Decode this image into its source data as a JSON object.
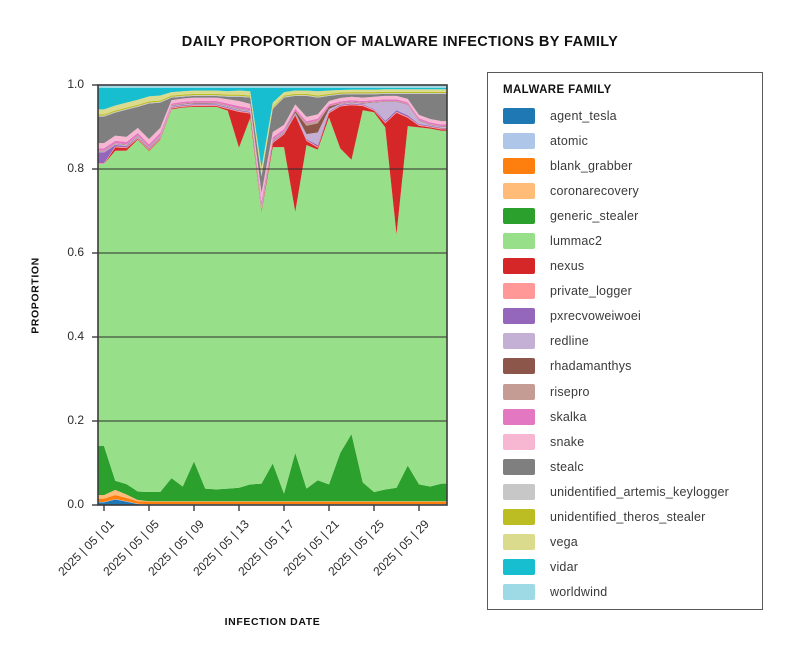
{
  "title": "DAILY PROPORTION OF MALWARE INFECTIONS BY FAMILY",
  "chart_data": {
    "type": "area",
    "stacked": true,
    "normalized": true,
    "title": "DAILY PROPORTION OF MALWARE INFECTIONS BY FAMILY",
    "xlabel": "INFECTION DATE",
    "ylabel": "PROPORTION",
    "ylim": [
      0.0,
      1.0
    ],
    "grid": true,
    "legend_position": "right",
    "legend_title": "MALWARE FAMILY",
    "x_days": [
      1,
      2,
      3,
      4,
      5,
      6,
      7,
      8,
      9,
      10,
      11,
      12,
      13,
      14,
      15,
      16,
      17,
      18,
      19,
      20,
      21,
      22,
      23,
      24,
      25,
      26,
      27,
      28,
      29,
      30,
      31
    ],
    "x_tick_days": [
      1,
      5,
      9,
      13,
      17,
      21,
      25,
      29
    ],
    "x_tick_labels": [
      "2025 | 05 | 01",
      "2025 | 05 | 05",
      "2025 | 05 | 09",
      "2025 | 05 | 13",
      "2025 | 05 | 17",
      "2025 | 05 | 21",
      "2025 | 05 | 25",
      "2025 | 05 | 29"
    ],
    "y_ticks": [
      1.0,
      0.8,
      0.6,
      0.4,
      0.2,
      0.0
    ],
    "y_tick_labels": [
      "1.0",
      "0.8",
      "0.6",
      "0.4",
      "0.2",
      "0.0"
    ],
    "series": [
      {
        "name": "agent_tesla",
        "color": "#1f77b4",
        "values": [
          0.006,
          0.013,
          0.008,
          0.002,
          0.001,
          0.001,
          0.001,
          0.001,
          0.001,
          0.001,
          0.001,
          0.001,
          0.001,
          0.001,
          0.001,
          0.001,
          0.001,
          0.001,
          0.001,
          0.001,
          0.001,
          0.001,
          0.001,
          0.001,
          0.001,
          0.001,
          0.001,
          0.001,
          0.001,
          0.001,
          0.001
        ]
      },
      {
        "name": "atomic",
        "color": "#aec7e8",
        "values": [
          0.001,
          0.001,
          0.001,
          0.001,
          0.001,
          0.001,
          0.001,
          0.001,
          0.001,
          0.001,
          0.001,
          0.001,
          0.001,
          0.001,
          0.001,
          0.001,
          0.001,
          0.001,
          0.001,
          0.001,
          0.001,
          0.001,
          0.001,
          0.001,
          0.001,
          0.001,
          0.001,
          0.001,
          0.001,
          0.001,
          0.001
        ]
      },
      {
        "name": "blank_grabber",
        "color": "#ff7f0e",
        "values": [
          0.008,
          0.01,
          0.008,
          0.006,
          0.006,
          0.006,
          0.006,
          0.006,
          0.006,
          0.006,
          0.006,
          0.006,
          0.006,
          0.006,
          0.006,
          0.006,
          0.006,
          0.006,
          0.006,
          0.006,
          0.006,
          0.006,
          0.006,
          0.006,
          0.006,
          0.006,
          0.006,
          0.006,
          0.006,
          0.006,
          0.006
        ]
      },
      {
        "name": "coronarecovery",
        "color": "#ffbb78",
        "values": [
          0.008,
          0.012,
          0.008,
          0.003,
          0.001,
          0.001,
          0.001,
          0.001,
          0.001,
          0.001,
          0.001,
          0.001,
          0.001,
          0.001,
          0.001,
          0.001,
          0.001,
          0.001,
          0.001,
          0.001,
          0.001,
          0.001,
          0.001,
          0.001,
          0.001,
          0.001,
          0.001,
          0.001,
          0.001,
          0.001,
          0.001
        ]
      },
      {
        "name": "generic_stealer",
        "color": "#2ca02c",
        "values": [
          0.115,
          0.022,
          0.025,
          0.02,
          0.022,
          0.022,
          0.055,
          0.035,
          0.095,
          0.03,
          0.028,
          0.03,
          0.032,
          0.04,
          0.042,
          0.09,
          0.018,
          0.115,
          0.03,
          0.05,
          0.04,
          0.115,
          0.16,
          0.045,
          0.022,
          0.028,
          0.032,
          0.085,
          0.04,
          0.035,
          0.042
        ]
      },
      {
        "name": "lummac2",
        "color": "#98df8a",
        "values": [
          0.66,
          0.788,
          0.797,
          0.838,
          0.812,
          0.839,
          0.878,
          0.902,
          0.844,
          0.909,
          0.909,
          0.9,
          0.81,
          0.873,
          0.646,
          0.753,
          0.825,
          0.574,
          0.818,
          0.787,
          0.874,
          0.725,
          0.653,
          0.886,
          0.904,
          0.862,
          0.603,
          0.808,
          0.85,
          0.852,
          0.84
        ]
      },
      {
        "name": "nexus",
        "color": "#d62728",
        "values": [
          0.0,
          0.008,
          0.006,
          0.002,
          0.002,
          0.002,
          0.002,
          0.002,
          0.002,
          0.002,
          0.002,
          0.004,
          0.085,
          0.01,
          0.004,
          0.01,
          0.03,
          0.23,
          0.01,
          0.005,
          0.01,
          0.1,
          0.13,
          0.01,
          0.004,
          0.01,
          0.29,
          0.02,
          0.004,
          0.003,
          0.003
        ]
      },
      {
        "name": "private_logger",
        "color": "#ff9896",
        "values": [
          0.002,
          0.002,
          0.002,
          0.002,
          0.002,
          0.002,
          0.002,
          0.002,
          0.002,
          0.002,
          0.002,
          0.002,
          0.002,
          0.002,
          0.002,
          0.002,
          0.002,
          0.002,
          0.002,
          0.002,
          0.002,
          0.002,
          0.002,
          0.002,
          0.002,
          0.002,
          0.002,
          0.002,
          0.002,
          0.002,
          0.002
        ]
      },
      {
        "name": "pxrecvoweiwoei",
        "color": "#9467bd",
        "values": [
          0.025,
          0.004,
          0.003,
          0.002,
          0.002,
          0.002,
          0.002,
          0.002,
          0.002,
          0.002,
          0.002,
          0.002,
          0.002,
          0.002,
          0.003,
          0.002,
          0.002,
          0.002,
          0.002,
          0.004,
          0.002,
          0.002,
          0.002,
          0.002,
          0.002,
          0.004,
          0.004,
          0.004,
          0.002,
          0.002,
          0.002
        ]
      },
      {
        "name": "redline",
        "color": "#c5b0d5",
        "values": [
          0.002,
          0.002,
          0.002,
          0.002,
          0.002,
          0.002,
          0.002,
          0.002,
          0.002,
          0.002,
          0.002,
          0.002,
          0.002,
          0.002,
          0.003,
          0.002,
          0.002,
          0.002,
          0.012,
          0.03,
          0.006,
          0.002,
          0.002,
          0.002,
          0.015,
          0.045,
          0.02,
          0.025,
          0.008,
          0.002,
          0.002
        ]
      },
      {
        "name": "rhadamanthys",
        "color": "#8c564b",
        "values": [
          0.001,
          0.001,
          0.001,
          0.001,
          0.001,
          0.001,
          0.001,
          0.001,
          0.001,
          0.001,
          0.001,
          0.001,
          0.001,
          0.001,
          0.001,
          0.001,
          0.001,
          0.004,
          0.02,
          0.022,
          0.006,
          0.001,
          0.001,
          0.001,
          0.001,
          0.001,
          0.001,
          0.001,
          0.001,
          0.001,
          0.001
        ]
      },
      {
        "name": "risepro",
        "color": "#c49c94",
        "values": [
          0.001,
          0.001,
          0.001,
          0.001,
          0.001,
          0.001,
          0.001,
          0.001,
          0.001,
          0.001,
          0.001,
          0.001,
          0.001,
          0.001,
          0.001,
          0.001,
          0.001,
          0.001,
          0.006,
          0.006,
          0.001,
          0.001,
          0.001,
          0.001,
          0.001,
          0.001,
          0.001,
          0.001,
          0.001,
          0.001,
          0.001
        ]
      },
      {
        "name": "skalka",
        "color": "#e377c2",
        "values": [
          0.006,
          0.006,
          0.006,
          0.006,
          0.006,
          0.006,
          0.004,
          0.004,
          0.004,
          0.004,
          0.004,
          0.005,
          0.006,
          0.005,
          0.012,
          0.006,
          0.005,
          0.005,
          0.005,
          0.005,
          0.004,
          0.004,
          0.004,
          0.004,
          0.004,
          0.004,
          0.004,
          0.004,
          0.004,
          0.004,
          0.004
        ]
      },
      {
        "name": "snake",
        "color": "#f7b6d2",
        "values": [
          0.012,
          0.012,
          0.012,
          0.012,
          0.012,
          0.012,
          0.008,
          0.008,
          0.008,
          0.008,
          0.008,
          0.01,
          0.012,
          0.01,
          0.02,
          0.012,
          0.01,
          0.01,
          0.01,
          0.01,
          0.008,
          0.008,
          0.008,
          0.008,
          0.008,
          0.008,
          0.008,
          0.008,
          0.008,
          0.008,
          0.008
        ]
      },
      {
        "name": "stealc",
        "color": "#7f7f7f",
        "values": [
          0.062,
          0.055,
          0.065,
          0.05,
          0.085,
          0.06,
          0.006,
          0.004,
          0.004,
          0.004,
          0.004,
          0.006,
          0.01,
          0.015,
          0.04,
          0.055,
          0.065,
          0.02,
          0.05,
          0.04,
          0.012,
          0.008,
          0.006,
          0.008,
          0.006,
          0.005,
          0.005,
          0.012,
          0.05,
          0.06,
          0.065
        ]
      },
      {
        "name": "unidentified_artemis_keylogger",
        "color": "#c7c7c7",
        "values": [
          0.002,
          0.002,
          0.002,
          0.002,
          0.002,
          0.002,
          0.002,
          0.002,
          0.002,
          0.002,
          0.002,
          0.002,
          0.002,
          0.002,
          0.002,
          0.002,
          0.002,
          0.002,
          0.002,
          0.002,
          0.002,
          0.002,
          0.002,
          0.002,
          0.002,
          0.002,
          0.002,
          0.002,
          0.002,
          0.002,
          0.002
        ]
      },
      {
        "name": "unidentified_theros_stealer",
        "color": "#bcbd22",
        "values": [
          0.003,
          0.003,
          0.003,
          0.003,
          0.003,
          0.003,
          0.003,
          0.003,
          0.003,
          0.003,
          0.003,
          0.003,
          0.003,
          0.003,
          0.003,
          0.003,
          0.003,
          0.003,
          0.003,
          0.003,
          0.003,
          0.003,
          0.003,
          0.003,
          0.003,
          0.003,
          0.003,
          0.003,
          0.003,
          0.003,
          0.003
        ]
      },
      {
        "name": "vega",
        "color": "#dbdb8d",
        "values": [
          0.012,
          0.012,
          0.012,
          0.012,
          0.012,
          0.012,
          0.008,
          0.008,
          0.008,
          0.008,
          0.008,
          0.008,
          0.01,
          0.01,
          0.015,
          0.01,
          0.008,
          0.008,
          0.008,
          0.01,
          0.008,
          0.006,
          0.006,
          0.006,
          0.006,
          0.006,
          0.006,
          0.006,
          0.006,
          0.006,
          0.006
        ]
      },
      {
        "name": "vidar",
        "color": "#17becf",
        "values": [
          0.05,
          0.042,
          0.035,
          0.028,
          0.02,
          0.018,
          0.01,
          0.008,
          0.006,
          0.006,
          0.006,
          0.008,
          0.006,
          0.008,
          0.19,
          0.035,
          0.01,
          0.006,
          0.006,
          0.008,
          0.006,
          0.005,
          0.004,
          0.004,
          0.004,
          0.003,
          0.003,
          0.003,
          0.003,
          0.003,
          0.003
        ]
      },
      {
        "name": "worldwind",
        "color": "#9edae5",
        "values": [
          0.007,
          0.007,
          0.007,
          0.007,
          0.007,
          0.007,
          0.007,
          0.007,
          0.007,
          0.007,
          0.007,
          0.007,
          0.007,
          0.007,
          0.007,
          0.007,
          0.007,
          0.007,
          0.007,
          0.007,
          0.007,
          0.007,
          0.007,
          0.007,
          0.007,
          0.007,
          0.007,
          0.007,
          0.007,
          0.007,
          0.007
        ]
      }
    ]
  }
}
